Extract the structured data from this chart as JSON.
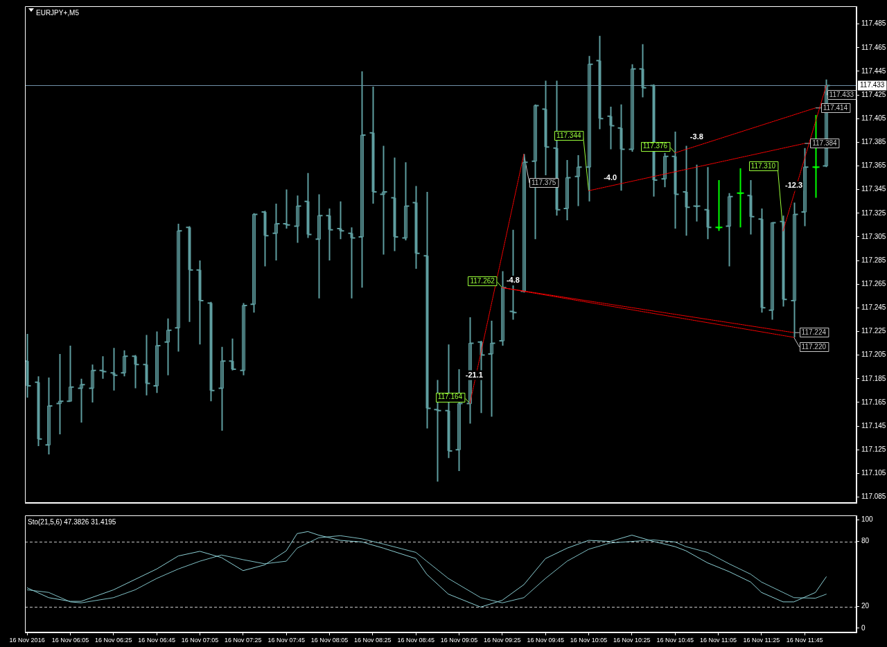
{
  "chart_data": [
    {
      "type": "candlestick",
      "title": "EURJPY+,M5",
      "x": [
        "2016-11-16T05:45",
        "2016-11-16T05:50",
        "2016-11-16T05:55",
        "2016-11-16T06:00",
        "2016-11-16T06:05",
        "2016-11-16T06:10",
        "2016-11-16T06:15",
        "2016-11-16T06:20",
        "2016-11-16T06:25",
        "2016-11-16T06:30",
        "2016-11-16T06:35",
        "2016-11-16T06:40",
        "2016-11-16T06:45",
        "2016-11-16T06:50",
        "2016-11-16T06:55",
        "2016-11-16T07:00",
        "2016-11-16T07:05",
        "2016-11-16T07:10",
        "2016-11-16T07:15",
        "2016-11-16T07:20",
        "2016-11-16T07:25",
        "2016-11-16T07:30",
        "2016-11-16T07:35",
        "2016-11-16T07:40",
        "2016-11-16T07:45",
        "2016-11-16T07:50",
        "2016-11-16T07:55",
        "2016-11-16T08:00",
        "2016-11-16T08:05",
        "2016-11-16T08:10",
        "2016-11-16T08:15",
        "2016-11-16T08:20",
        "2016-11-16T08:25",
        "2016-11-16T08:30",
        "2016-11-16T08:35",
        "2016-11-16T08:40",
        "2016-11-16T08:45",
        "2016-11-16T08:50",
        "2016-11-16T08:55",
        "2016-11-16T09:00",
        "2016-11-16T09:05",
        "2016-11-16T09:10",
        "2016-11-16T09:15",
        "2016-11-16T09:20",
        "2016-11-16T09:25",
        "2016-11-16T09:30",
        "2016-11-16T09:35",
        "2016-11-16T09:40",
        "2016-11-16T09:45",
        "2016-11-16T09:50",
        "2016-11-16T09:55",
        "2016-11-16T10:00",
        "2016-11-16T10:05",
        "2016-11-16T10:10",
        "2016-11-16T10:15",
        "2016-11-16T10:20",
        "2016-11-16T10:25",
        "2016-11-16T10:30",
        "2016-11-16T10:35",
        "2016-11-16T10:40",
        "2016-11-16T10:45",
        "2016-11-16T10:50",
        "2016-11-16T10:55",
        "2016-11-16T11:00",
        "2016-11-16T11:05",
        "2016-11-16T11:10",
        "2016-11-16T11:15",
        "2016-11-16T11:20",
        "2016-11-16T11:25",
        "2016-11-16T11:30",
        "2016-11-16T11:35",
        "2016-11-16T11:40",
        "2016-11-16T11:45",
        "2016-11-16T11:50",
        "2016-11-16T11:55"
      ],
      "ohlc": [
        [
          117.2,
          117.223,
          117.169,
          117.179
        ],
        [
          117.182,
          117.187,
          117.128,
          117.134
        ],
        [
          117.129,
          117.186,
          117.121,
          117.162
        ],
        [
          117.164,
          117.206,
          117.138,
          117.166
        ],
        [
          117.166,
          117.213,
          117.166,
          117.178
        ],
        [
          117.177,
          117.185,
          117.148,
          117.18
        ],
        [
          117.177,
          117.197,
          117.165,
          117.192
        ],
        [
          117.192,
          117.204,
          117.185,
          117.191
        ],
        [
          117.19,
          117.211,
          117.175,
          117.188
        ],
        [
          117.19,
          117.209,
          117.187,
          117.204
        ],
        [
          117.204,
          117.205,
          117.177,
          117.197
        ],
        [
          117.197,
          117.222,
          117.171,
          117.181
        ],
        [
          117.179,
          117.225,
          117.173,
          117.213
        ],
        [
          117.216,
          117.236,
          117.188,
          117.226
        ],
        [
          117.228,
          117.316,
          117.208,
          117.31
        ],
        [
          117.313,
          117.314,
          117.233,
          117.277
        ],
        [
          117.277,
          117.285,
          117.214,
          117.251
        ],
        [
          117.249,
          117.25,
          117.166,
          117.175
        ],
        [
          117.177,
          117.212,
          117.141,
          117.2
        ],
        [
          117.2,
          117.219,
          117.192,
          117.193
        ],
        [
          117.192,
          117.249,
          117.188,
          117.247
        ],
        [
          117.248,
          117.325,
          117.241,
          117.324
        ],
        [
          117.326,
          117.327,
          117.28,
          117.306
        ],
        [
          117.308,
          117.333,
          117.285,
          117.316
        ],
        [
          117.316,
          117.345,
          117.312,
          117.315
        ],
        [
          117.314,
          117.34,
          117.3,
          117.331
        ],
        [
          117.335,
          117.359,
          117.304,
          117.307
        ],
        [
          117.303,
          117.341,
          117.253,
          117.323
        ],
        [
          117.323,
          117.329,
          117.285,
          117.311
        ],
        [
          117.312,
          117.335,
          117.303,
          117.31
        ],
        [
          117.308,
          117.313,
          117.253,
          117.304
        ],
        [
          117.305,
          117.445,
          117.262,
          117.391
        ],
        [
          117.393,
          117.432,
          117.333,
          117.343
        ],
        [
          117.341,
          117.382,
          117.29,
          117.343
        ],
        [
          117.338,
          117.372,
          117.293,
          117.305
        ],
        [
          117.304,
          117.368,
          117.302,
          117.331
        ],
        [
          117.334,
          117.348,
          117.278,
          117.291
        ],
        [
          117.289,
          117.343,
          117.143,
          117.16
        ],
        [
          117.159,
          117.184,
          117.098,
          117.158
        ],
        [
          117.158,
          117.214,
          117.118,
          117.124
        ],
        [
          117.125,
          117.193,
          117.107,
          117.164
        ],
        [
          117.164,
          117.237,
          117.147,
          117.215
        ],
        [
          117.216,
          117.217,
          117.156,
          117.205
        ],
        [
          117.206,
          117.234,
          117.153,
          117.215
        ],
        [
          117.217,
          117.276,
          117.213,
          117.262
        ],
        [
          117.242,
          117.311,
          117.235,
          117.241
        ],
        [
          117.259,
          117.375,
          117.258,
          117.368
        ],
        [
          117.369,
          117.417,
          117.303,
          117.416
        ],
        [
          117.413,
          117.437,
          117.357,
          117.381
        ],
        [
          117.38,
          117.437,
          117.323,
          117.328
        ],
        [
          117.329,
          117.37,
          117.319,
          117.355
        ],
        [
          117.356,
          117.374,
          117.331,
          117.364
        ],
        [
          117.364,
          117.458,
          117.335,
          117.451
        ],
        [
          117.454,
          117.475,
          117.396,
          117.405
        ],
        [
          117.407,
          117.415,
          117.379,
          117.399
        ],
        [
          117.397,
          117.417,
          117.344,
          117.379
        ],
        [
          117.379,
          117.451,
          117.377,
          117.447
        ],
        [
          117.447,
          117.468,
          117.423,
          117.431
        ],
        [
          117.433,
          117.434,
          117.339,
          117.353
        ],
        [
          117.354,
          117.376,
          117.347,
          117.373
        ],
        [
          117.373,
          117.394,
          117.312,
          117.341
        ],
        [
          117.343,
          117.382,
          117.306,
          117.33
        ],
        [
          117.331,
          117.366,
          117.318,
          117.331
        ],
        [
          117.328,
          117.364,
          117.303,
          117.313
        ],
        [
          117.313,
          117.353,
          117.31,
          117.313
        ],
        [
          117.314,
          117.342,
          117.28,
          117.339
        ],
        [
          117.342,
          117.363,
          117.313,
          117.342
        ],
        [
          117.34,
          117.353,
          117.307,
          117.322
        ],
        [
          117.32,
          117.329,
          117.241,
          117.245
        ],
        [
          117.243,
          117.317,
          117.235,
          117.317
        ],
        [
          117.318,
          117.323,
          117.246,
          117.252
        ],
        [
          117.251,
          117.334,
          117.22,
          117.324
        ],
        [
          117.326,
          117.38,
          117.314,
          117.364
        ],
        [
          117.364,
          117.408,
          117.338,
          117.364
        ],
        [
          117.365,
          117.438,
          117.364,
          117.433
        ]
      ],
      "colors": [
        "#5f9ea0",
        "#5f9ea0",
        "#5f9ea0",
        "#5f9ea0",
        "#5f9ea0",
        "#5f9ea0",
        "#5f9ea0",
        "#5f9ea0",
        "#5f9ea0",
        "#5f9ea0",
        "#5f9ea0",
        "#5f9ea0",
        "#5f9ea0",
        "#5f9ea0",
        "#5f9ea0",
        "#5f9ea0",
        "#5f9ea0",
        "#5f9ea0",
        "#5f9ea0",
        "#5f9ea0",
        "#5f9ea0",
        "#5f9ea0",
        "#5f9ea0",
        "#5f9ea0",
        "#5f9ea0",
        "#5f9ea0",
        "#5f9ea0",
        "#5f9ea0",
        "#5f9ea0",
        "#5f9ea0",
        "#5f9ea0",
        "#5f9ea0",
        "#5f9ea0",
        "#5f9ea0",
        "#5f9ea0",
        "#5f9ea0",
        "#5f9ea0",
        "#5f9ea0",
        "#5f9ea0",
        "#5f9ea0",
        "#5f9ea0",
        "#5f9ea0",
        "#5f9ea0",
        "#5f9ea0",
        "#5f9ea0",
        "#5f9ea0",
        "#5f9ea0",
        "#5f9ea0",
        "#5f9ea0",
        "#5f9ea0",
        "#5f9ea0",
        "#5f9ea0",
        "#5f9ea0",
        "#5f9ea0",
        "#5f9ea0",
        "#5f9ea0",
        "#5f9ea0",
        "#5f9ea0",
        "#5f9ea0",
        "#5f9ea0",
        "#5f9ea0",
        "#5f9ea0",
        "#5f9ea0",
        "#5f9ea0",
        "#00ff00",
        "#5f9ea0",
        "#00ff00",
        "#5f9ea0",
        "#5f9ea0",
        "#5f9ea0",
        "#5f9ea0",
        "#5f9ea0",
        "#5f9ea0",
        "#00ff00",
        "#5f9ea0"
      ],
      "series": [
        {
          "type": "line",
          "color": "#ff0000",
          "line_style": "dotted",
          "x": [
            "2016-11-16T09:10",
            "2016-11-16T09:35"
          ],
          "values": [
            117.164,
            117.375
          ]
        },
        {
          "type": "line",
          "color": "#ff0000",
          "line_style": "dotted",
          "x": [
            "2016-11-16T09:25",
            "2016-11-16T11:40"
          ],
          "values": [
            117.262,
            117.224
          ]
        },
        {
          "type": "line",
          "color": "#ff0000",
          "line_style": "dotted",
          "x": [
            "2016-11-16T09:25",
            "2016-11-16T11:40"
          ],
          "values": [
            117.262,
            117.22
          ]
        },
        {
          "type": "line",
          "color": "#ff0000",
          "line_style": "dotted",
          "x": [
            "2016-11-16T10:05",
            "2016-11-16T11:45"
          ],
          "values": [
            117.344,
            117.384
          ]
        },
        {
          "type": "line",
          "color": "#ff0000",
          "line_style": "dotted",
          "x": [
            "2016-11-16T10:45",
            "2016-11-16T11:50"
          ],
          "values": [
            117.376,
            117.414
          ]
        },
        {
          "type": "line",
          "color": "#ff0000",
          "line_style": "dotted",
          "x": [
            "2016-11-16T11:35",
            "2016-11-16T11:55"
          ],
          "values": [
            117.31,
            117.433
          ]
        }
      ],
      "annotations": [
        {
          "text": "117.164",
          "x": "2016-11-16T09:10",
          "y": 117.164
        },
        {
          "text": "117.375",
          "x": "2016-11-16T09:35",
          "y": 117.375
        },
        {
          "text": "117.262",
          "x": "2016-11-16T09:25",
          "y": 117.262
        },
        {
          "text": "117.224",
          "x": "2016-11-16T11:40",
          "y": 117.224
        },
        {
          "text": "117.220",
          "x": "2016-11-16T11:40",
          "y": 117.22
        },
        {
          "text": "117.344",
          "x": "2016-11-16T10:05",
          "y": 117.344
        },
        {
          "text": "117.384",
          "x": "2016-11-16T11:45",
          "y": 117.384
        },
        {
          "text": "117.376",
          "x": "2016-11-16T10:45",
          "y": 117.376
        },
        {
          "text": "117.414",
          "x": "2016-11-16T11:50",
          "y": 117.414
        },
        {
          "text": "117.310",
          "x": "2016-11-16T11:35",
          "y": 117.31
        },
        {
          "text": "117.433",
          "x": "2016-11-16T11:55",
          "y": 117.433
        },
        {
          "text": "-21.1",
          "x": "2016-11-16T09:12",
          "y": 117.181
        },
        {
          "text": "-4.8",
          "x": "2016-11-16T09:30",
          "y": 117.261
        },
        {
          "text": "-4.0",
          "x": "2016-11-16T10:15",
          "y": 117.348
        },
        {
          "text": "-3.8",
          "x": "2016-11-16T10:55",
          "y": 117.382
        },
        {
          "text": "-12.3",
          "x": "2016-11-16T11:40",
          "y": 117.341
        }
      ],
      "ref_lines": [
        {
          "axis": "y",
          "value": 117.433,
          "label": "117.433",
          "color": "#7090a8"
        }
      ],
      "xlim": [
        "2016-11-16T05:44",
        "2016-11-16T12:09"
      ],
      "ylim": [
        117.08,
        117.5
      ],
      "yticks": [
        117.085,
        117.105,
        117.125,
        117.145,
        117.165,
        117.185,
        117.205,
        117.225,
        117.245,
        117.265,
        117.285,
        117.305,
        117.325,
        117.345,
        117.365,
        117.385,
        117.405,
        117.425,
        117.445,
        117.465,
        117.485
      ],
      "tick_labels": "y"
    },
    {
      "type": "line",
      "title": "Sto(21,5,6) 47.3826 31.4195",
      "series": [
        {
          "color": "#8ccfd4",
          "x": [
            "2016-11-16T05:45",
            "2016-11-16T05:55",
            "2016-11-16T06:05",
            "2016-11-16T06:10",
            "2016-11-16T06:25",
            "2016-11-16T06:35",
            "2016-11-16T06:45",
            "2016-11-16T06:55",
            "2016-11-16T07:05",
            "2016-11-16T07:15",
            "2016-11-16T07:25",
            "2016-11-16T07:35",
            "2016-11-16T07:45",
            "2016-11-16T07:50",
            "2016-11-16T07:55",
            "2016-11-16T08:00",
            "2016-11-16T08:10",
            "2016-11-16T08:20",
            "2016-11-16T08:30",
            "2016-11-16T08:45",
            "2016-11-16T08:50",
            "2016-11-16T09:00",
            "2016-11-16T09:15",
            "2016-11-16T09:25",
            "2016-11-16T09:35",
            "2016-11-16T09:45",
            "2016-11-16T09:55",
            "2016-11-16T10:05",
            "2016-11-16T10:15",
            "2016-11-16T10:25",
            "2016-11-16T10:35",
            "2016-11-16T10:45",
            "2016-11-16T10:50",
            "2016-11-16T11:00",
            "2016-11-16T11:10",
            "2016-11-16T11:20",
            "2016-11-16T11:25",
            "2016-11-16T11:35",
            "2016-11-16T11:40",
            "2016-11-16T11:50",
            "2016-11-16T11:55"
          ],
          "values": [
            37.3,
            28.2,
            24.8,
            24.8,
            35.4,
            45,
            54.6,
            66.6,
            70.9,
            65.1,
            53.1,
            58.4,
            71.4,
            87.2,
            89.1,
            85.8,
            81,
            79.5,
            73.8,
            64.2,
            49.8,
            31.5,
            19.5,
            25.8,
            40.2,
            64.2,
            73.8,
            81,
            80,
            85.8,
            80,
            75.2,
            71.4,
            60.3,
            52.2,
            42.6,
            33,
            24.3,
            24.3,
            33,
            47.4
          ]
        },
        {
          "color": "#7fbfc4",
          "x": [
            "2016-11-16T05:45",
            "2016-11-16T05:55",
            "2016-11-16T06:05",
            "2016-11-16T06:10",
            "2016-11-16T06:25",
            "2016-11-16T06:35",
            "2016-11-16T06:45",
            "2016-11-16T06:55",
            "2016-11-16T07:05",
            "2016-11-16T07:15",
            "2016-11-16T07:25",
            "2016-11-16T07:35",
            "2016-11-16T07:45",
            "2016-11-16T07:50",
            "2016-11-16T07:55",
            "2016-11-16T08:00",
            "2016-11-16T08:10",
            "2016-11-16T08:20",
            "2016-11-16T08:30",
            "2016-11-16T08:45",
            "2016-11-16T08:50",
            "2016-11-16T09:00",
            "2016-11-16T09:15",
            "2016-11-16T09:25",
            "2016-11-16T09:35",
            "2016-11-16T09:45",
            "2016-11-16T09:55",
            "2016-11-16T10:05",
            "2016-11-16T10:15",
            "2016-11-16T10:25",
            "2016-11-16T10:35",
            "2016-11-16T10:45",
            "2016-11-16T10:50",
            "2016-11-16T11:00",
            "2016-11-16T11:10",
            "2016-11-16T11:20",
            "2016-11-16T11:25",
            "2016-11-16T11:35",
            "2016-11-16T11:40",
            "2016-11-16T11:50",
            "2016-11-16T11:55"
          ],
          "values": [
            35.4,
            33,
            24.3,
            23.4,
            28.2,
            35.4,
            45.9,
            54.6,
            61.8,
            67.5,
            63.2,
            59.4,
            61.8,
            73.8,
            78.6,
            83.4,
            85.3,
            82.4,
            77.6,
            69.9,
            61.8,
            45.9,
            28.2,
            23.4,
            28.2,
            45.9,
            61.8,
            72.8,
            78.6,
            80,
            81.4,
            79.5,
            75.2,
            69.9,
            59.4,
            49.8,
            42.6,
            33,
            28.2,
            27.7,
            31.4
          ]
        }
      ],
      "ref_lines": [
        {
          "axis": "y",
          "value": 20,
          "color": "#c8c8c8",
          "line_style": "dashed"
        },
        {
          "axis": "y",
          "value": 80,
          "color": "#c8c8c8",
          "line_style": "dashed"
        }
      ],
      "xlim": [
        "2016-11-16T05:44",
        "2016-11-16T12:09"
      ],
      "xticks": [
        {
          "value": "2016-11-16T05:45",
          "label": "16 Nov 2016"
        },
        {
          "value": "2016-11-16T06:05",
          "label": "16 Nov 06:05"
        },
        {
          "value": "2016-11-16T06:25",
          "label": "16 Nov 06:25"
        },
        {
          "value": "2016-11-16T06:45",
          "label": "16 Nov 06:45"
        },
        {
          "value": "2016-11-16T07:05",
          "label": "16 Nov 07:05"
        },
        {
          "value": "2016-11-16T07:25",
          "label": "16 Nov 07:25"
        },
        {
          "value": "2016-11-16T07:45",
          "label": "16 Nov 07:45"
        },
        {
          "value": "2016-11-16T08:05",
          "label": "16 Nov 08:05"
        },
        {
          "value": "2016-11-16T08:25",
          "label": "16 Nov 08:25"
        },
        {
          "value": "2016-11-16T08:45",
          "label": "16 Nov 08:45"
        },
        {
          "value": "2016-11-16T09:05",
          "label": "16 Nov 09:05"
        },
        {
          "value": "2016-11-16T09:25",
          "label": "16 Nov 09:25"
        },
        {
          "value": "2016-11-16T09:45",
          "label": "16 Nov 09:45"
        },
        {
          "value": "2016-11-16T10:05",
          "label": "16 Nov 10:05"
        },
        {
          "value": "2016-11-16T10:25",
          "label": "16 Nov 10:25"
        },
        {
          "value": "2016-11-16T10:45",
          "label": "16 Nov 10:45"
        },
        {
          "value": "2016-11-16T11:05",
          "label": "16 Nov 11:05"
        },
        {
          "value": "2016-11-16T11:25",
          "label": "16 Nov 11:25"
        },
        {
          "value": "2016-11-16T11:45",
          "label": "16 Nov 11:45"
        }
      ],
      "ylim": [
        -4,
        104
      ],
      "yticks": [
        0,
        20,
        80,
        100
      ]
    }
  ]
}
